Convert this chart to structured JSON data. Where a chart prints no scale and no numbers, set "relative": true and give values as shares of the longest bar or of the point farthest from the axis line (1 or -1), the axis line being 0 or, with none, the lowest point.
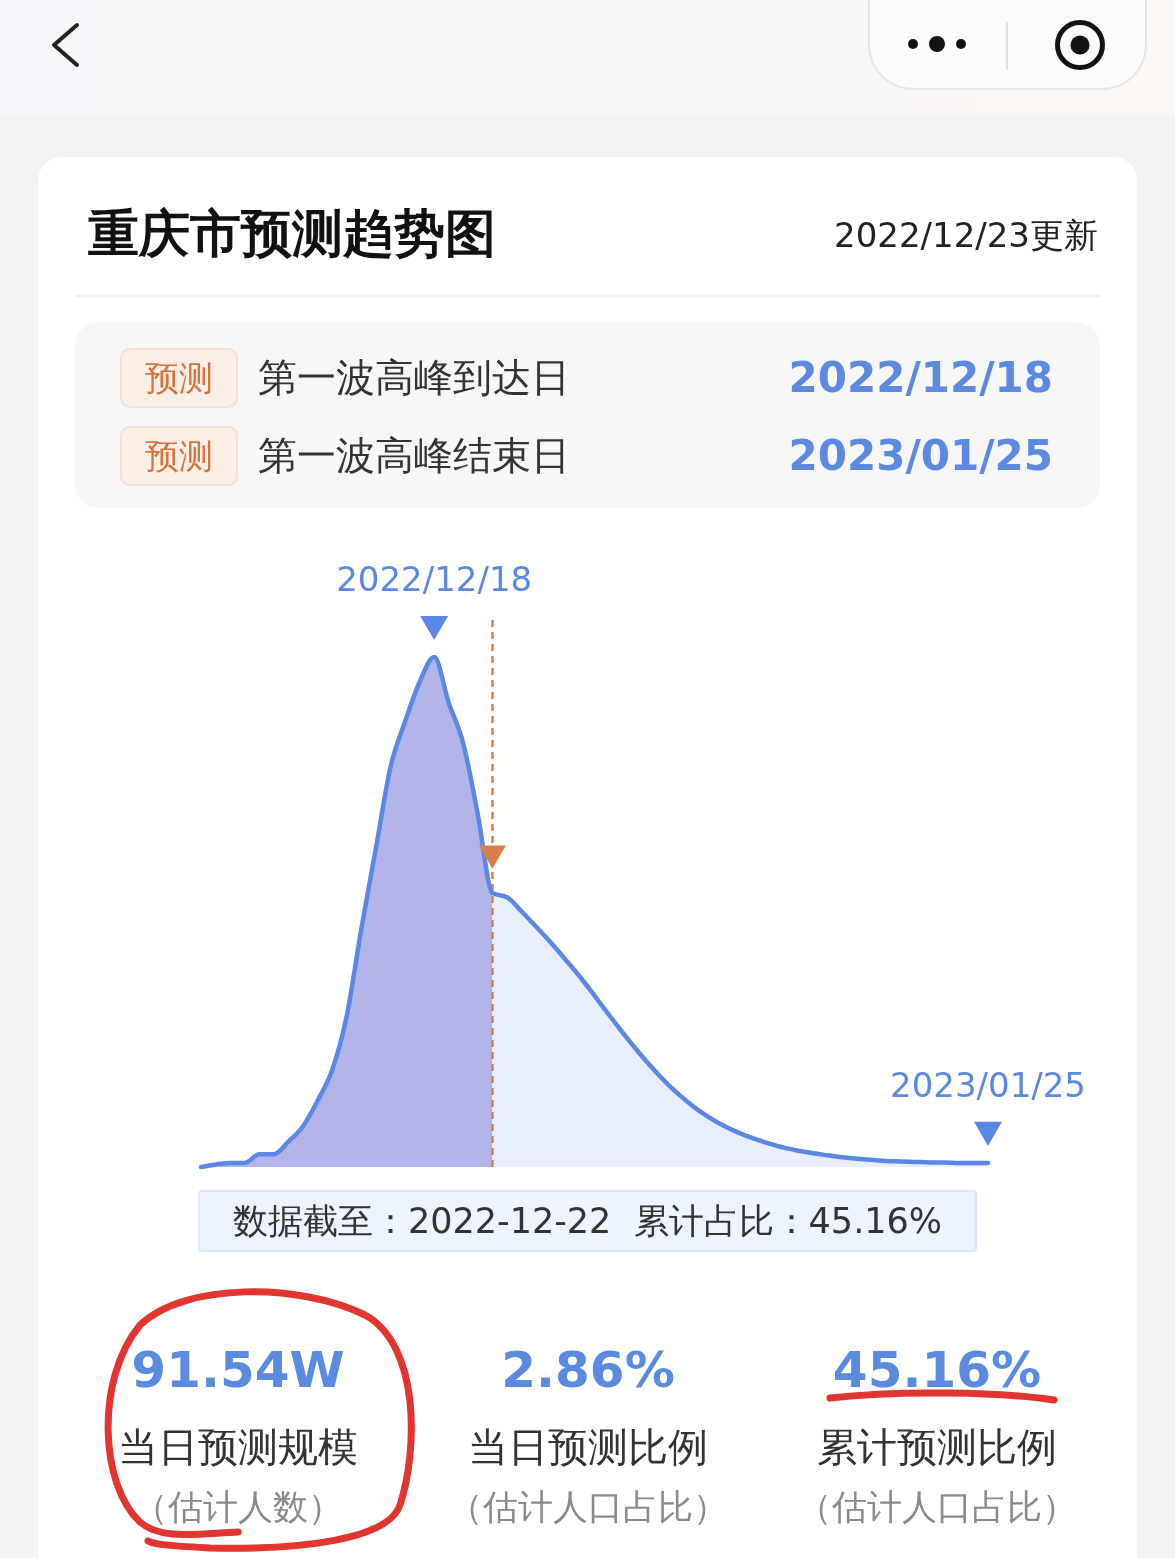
{
  "chart_data": {
    "type": "area",
    "title": "重庆市预测趋势图",
    "subtitle": "2022/12/23更新",
    "relative": true,
    "tick_labels": false,
    "categories": [
      null,
      null,
      null,
      null,
      null,
      null,
      null,
      null,
      null,
      null,
      null,
      null,
      null,
      null,
      null,
      null,
      null,
      null,
      null,
      null,
      null,
      null,
      null,
      null,
      null,
      null,
      null,
      null,
      null,
      null,
      null,
      null,
      null,
      null,
      null,
      null,
      null,
      null,
      null,
      null,
      null,
      null,
      null,
      null,
      null,
      null,
      null,
      null,
      null,
      null,
      null,
      null,
      null,
      null,
      null
    ],
    "series": [
      {
        "color": "#b3b4e9",
        "values": [
          0,
          0.005,
          0.008,
          0.008,
          0.025,
          0.025,
          0.05,
          0.08,
          0.13,
          0.19,
          0.296,
          0.467,
          0.625,
          0.784,
          0.873,
          0.951,
          1,
          0.91,
          0.83,
          0.69,
          0.537,
          null,
          null,
          null,
          null,
          null,
          null,
          null,
          null,
          null,
          null,
          null,
          null,
          null,
          null,
          null,
          null,
          null,
          null,
          null,
          null,
          null,
          null,
          null,
          null,
          null,
          null,
          null,
          null,
          null,
          null,
          null,
          null,
          null,
          null
        ]
      },
      {
        "color": "#e8eefc",
        "values": [
          null,
          null,
          null,
          null,
          null,
          null,
          null,
          null,
          null,
          null,
          null,
          null,
          null,
          null,
          null,
          null,
          null,
          null,
          null,
          null,
          0.537,
          0.529,
          0.501,
          0.471,
          0.44,
          0.407,
          0.373,
          0.336,
          0.298,
          0.261,
          0.226,
          0.193,
          0.163,
          0.137,
          0.114,
          0.095,
          0.079,
          0.066,
          0.055,
          0.046,
          0.038,
          0.032,
          0.027,
          0.023,
          0.019,
          0.016,
          0.014,
          0.012,
          0.011,
          0.01,
          0.009,
          0.009,
          0.008,
          0.008,
          0.008
        ]
      },
      {
        "type": "line",
        "color": "#5b87e5",
        "values": [
          0,
          0.005,
          0.008,
          0.008,
          0.025,
          0.025,
          0.05,
          0.08,
          0.13,
          0.19,
          0.296,
          0.467,
          0.625,
          0.784,
          0.873,
          0.951,
          1,
          0.91,
          0.83,
          0.69,
          0.537,
          0.529,
          0.501,
          0.471,
          0.44,
          0.407,
          0.373,
          0.336,
          0.298,
          0.261,
          0.226,
          0.193,
          0.163,
          0.137,
          0.114,
          0.095,
          0.079,
          0.066,
          0.055,
          0.046,
          0.038,
          0.032,
          0.027,
          0.023,
          0.019,
          0.016,
          0.014,
          0.012,
          0.011,
          0.01,
          0.009,
          0.009,
          0.008,
          0.008,
          0.008
        ]
      }
    ],
    "annotations": [
      "2022/12/18",
      "2023/01/25",
      "预测",
      "第一波高峰到达日",
      "2022/12/18",
      "预测",
      "第一波高峰结束日",
      "2023/01/25",
      "数据截至：2022-12-22  累计占比：45.16%",
      "91.54W",
      "当日预测规模",
      "（估计人数）",
      "2.86%",
      "当日预测比例",
      "（估计人口占比）",
      "45.16%",
      "累计预测比例",
      "（估计人口占比）"
    ]
  }
}
